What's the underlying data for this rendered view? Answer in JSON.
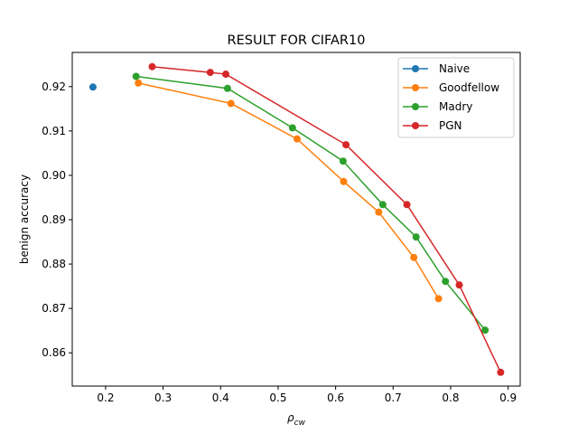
{
  "chart_data": {
    "type": "line",
    "title": "RESULT FOR CIFAR10",
    "xlabel": {
      "base": "ρ",
      "sub": "cw"
    },
    "ylabel": "benign accuracy",
    "xlim": [
      0.142,
      0.921
    ],
    "ylim": [
      0.8525,
      0.9277
    ],
    "xticks": [
      0.2,
      0.3,
      0.4,
      0.5,
      0.6,
      0.7,
      0.8,
      0.9
    ],
    "xtick_labels": [
      "0.2",
      "0.3",
      "0.4",
      "0.5",
      "0.6",
      "0.7",
      "0.8",
      "0.9"
    ],
    "yticks": [
      0.86,
      0.87,
      0.88,
      0.89,
      0.9,
      0.91,
      0.92
    ],
    "ytick_labels": [
      "0.86",
      "0.87",
      "0.88",
      "0.89",
      "0.90",
      "0.91",
      "0.92"
    ],
    "grid": false,
    "legend_position": "top-right",
    "series": [
      {
        "name": "Naive",
        "color": "#1f77b4",
        "x": [
          0.178
        ],
        "y": [
          0.9199
        ]
      },
      {
        "name": "Goodfellow",
        "color": "#ff7f0e",
        "x": [
          0.257,
          0.418,
          0.533,
          0.614,
          0.675,
          0.736,
          0.779
        ],
        "y": [
          0.9208,
          0.9162,
          0.9082,
          0.8986,
          0.8917,
          0.8815,
          0.8722
        ]
      },
      {
        "name": "Madry",
        "color": "#2ca02c",
        "x": [
          0.253,
          0.412,
          0.525,
          0.613,
          0.682,
          0.74,
          0.791,
          0.86
        ],
        "y": [
          0.9223,
          0.9196,
          0.9107,
          0.9032,
          0.8934,
          0.8861,
          0.8761,
          0.8651
        ]
      },
      {
        "name": "PGN",
        "color": "#d62728",
        "x": [
          0.281,
          0.382,
          0.409,
          0.618,
          0.724,
          0.815,
          0.887
        ],
        "y": [
          0.9245,
          0.9232,
          0.9228,
          0.9069,
          0.8934,
          0.8753,
          0.8556
        ]
      }
    ]
  }
}
